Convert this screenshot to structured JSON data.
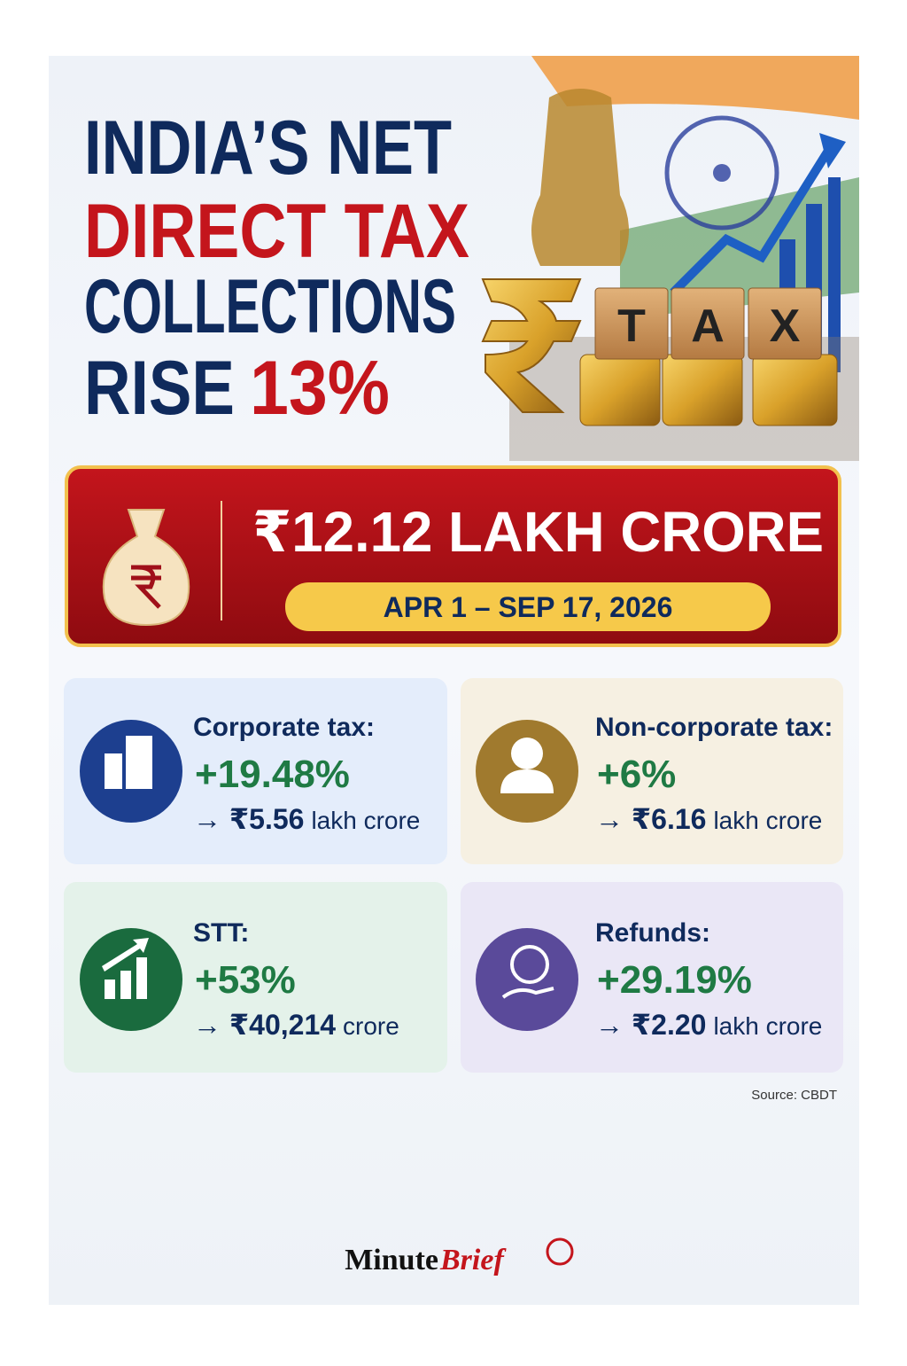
{
  "header": {
    "title_line1": "INDIA’S NET",
    "title_line2": "DIRECT TAX",
    "title_line3": "COLLECTIONS",
    "title_line4a": "RISE",
    "title_line4b": "13%"
  },
  "image": {
    "blocks": [
      "T",
      "A",
      "X"
    ]
  },
  "highlight": {
    "amount": "₹12.12 LAKH CRORE",
    "period": "APR 1 – SEP 17, 2026"
  },
  "cards": [
    {
      "label": "Corporate tax:",
      "change": "+19.48%",
      "amount": "→ ₹5.56",
      "unit": "lakh crore"
    },
    {
      "label": "Non-corporate tax:",
      "change": "+6%",
      "amount": "→ ₹6.16",
      "unit": "lakh crore"
    },
    {
      "label": "STT:",
      "change": "+53%",
      "amount": "→ ₹40,214",
      "unit": "crore"
    },
    {
      "label": "Refunds:",
      "change": "+29.19%",
      "amount": "→ ₹2.20",
      "unit": "lakh crore"
    }
  ],
  "source": "Source: CBDT",
  "brand": {
    "part1": "Minute",
    "part2": "Brief"
  }
}
